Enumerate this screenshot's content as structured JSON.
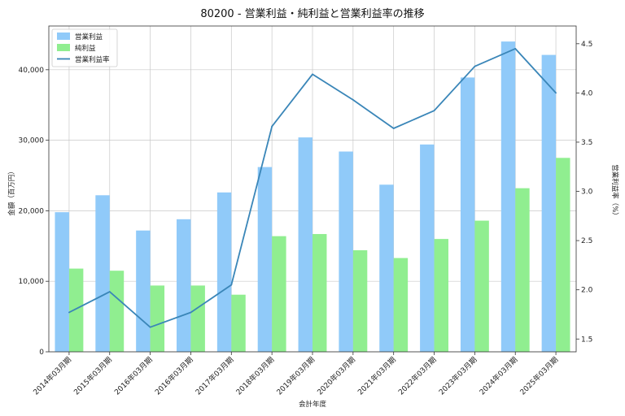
{
  "chart_data": {
    "type": "bar",
    "title": "80200 - 営業利益・純利益と営業利益率の推移",
    "xlabel": "会計年度",
    "ylabel": "金額（百万円）",
    "ylabel_right": "営業利益率（%）",
    "categories": [
      "2014年03月期",
      "2015年03月期",
      "2016年03月期",
      "2016年03月期",
      "2017年03月期",
      "2018年03月期",
      "2019年03月期",
      "2020年03月期",
      "2021年03月期",
      "2022年03月期",
      "2023年03月期",
      "2024年03月期",
      "2025年03月期"
    ],
    "series": [
      {
        "name": "営業利益",
        "type": "bar",
        "axis": "left",
        "color": "#90CAF9",
        "values": [
          19800,
          22200,
          17200,
          18800,
          22600,
          26200,
          30400,
          28400,
          23700,
          29400,
          38900,
          44000,
          42100
        ]
      },
      {
        "name": "純利益",
        "type": "bar",
        "axis": "left",
        "color": "#90EE90",
        "values": [
          11800,
          11500,
          9400,
          9400,
          8100,
          16400,
          16700,
          14400,
          13300,
          16000,
          18600,
          23200,
          27500
        ]
      },
      {
        "name": "営業利益率",
        "type": "line",
        "axis": "right",
        "color": "#3A86B8",
        "values": [
          1.77,
          1.98,
          1.62,
          1.77,
          2.05,
          3.66,
          4.19,
          3.93,
          3.64,
          3.82,
          4.27,
          4.45,
          4.0
        ]
      }
    ],
    "ylim": [
      0,
      46200
    ],
    "yticks": [
      0,
      10000,
      20000,
      30000,
      40000
    ],
    "ytick_labels": [
      "0",
      "10,000",
      "20,000",
      "30,000",
      "40,000"
    ],
    "ylim_right": [
      1.37,
      4.68
    ],
    "yticks_right": [
      1.5,
      2.0,
      2.5,
      3.0,
      3.5,
      4.0,
      4.5
    ],
    "ytick_labels_right": [
      "1.5",
      "2.0",
      "2.5",
      "3.0",
      "3.5",
      "4.0",
      "4.5"
    ],
    "grid": true,
    "legend_placement": "top-left"
  }
}
